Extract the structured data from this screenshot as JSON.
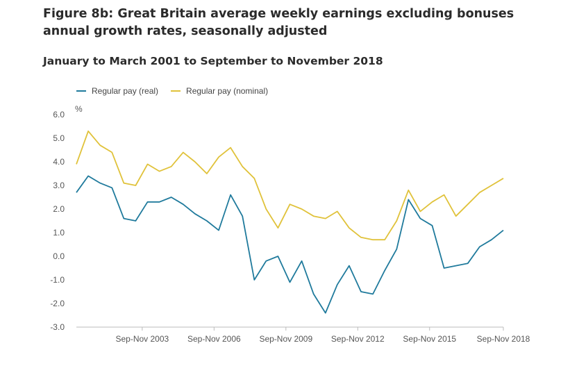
{
  "title": "Figure 8b: Great Britain average weekly earnings excluding bonuses annual growth rates, seasonally adjusted",
  "subtitle": "January to March 2001 to September to November 2018",
  "chart_data": {
    "type": "line",
    "title": "Figure 8b: Great Britain average weekly earnings excluding bonuses annual growth rates, seasonally adjusted",
    "subtitle": "January to March 2001 to September to November 2018",
    "xlabel": "",
    "ylabel": "%",
    "ylim": [
      -3.0,
      6.0
    ],
    "yticks": [
      "6.0",
      "5.0",
      "4.0",
      "3.0",
      "2.0",
      "1.0",
      "0.0",
      "-1.0",
      "-2.0",
      "-3.0"
    ],
    "xticks": [
      "Sep-Nov 2003",
      "Sep-Nov 2006",
      "Sep-Nov 2009",
      "Sep-Nov 2012",
      "Sep-Nov 2015",
      "Sep-Nov 2018"
    ],
    "grid": false,
    "legend_position": "top-left",
    "x": [
      "Jan-Mar 2001",
      "Jul-Sep 2001",
      "Jan-Mar 2002",
      "Jul-Sep 2002",
      "Jan-Mar 2003",
      "Jul-Sep 2003",
      "Jan-Mar 2004",
      "Jul-Sep 2004",
      "Jan-Mar 2005",
      "Jul-Sep 2005",
      "Jan-Mar 2006",
      "Jul-Sep 2006",
      "Jan-Mar 2007",
      "Jul-Sep 2007",
      "Jan-Mar 2008",
      "Jul-Sep 2008",
      "Jan-Mar 2009",
      "Jul-Sep 2009",
      "Jan-Mar 2010",
      "Jul-Sep 2010",
      "Jan-Mar 2011",
      "Jul-Sep 2011",
      "Jan-Mar 2012",
      "Jul-Sep 2012",
      "Jan-Mar 2013",
      "Jul-Sep 2013",
      "Jan-Mar 2014",
      "Jul-Sep 2014",
      "Jan-Mar 2015",
      "Jul-Sep 2015",
      "Jan-Mar 2016",
      "Jul-Sep 2016",
      "Jan-Mar 2017",
      "Jul-Sep 2017",
      "Jan-Mar 2018",
      "Jul-Sep 2018",
      "Sep-Nov 2018"
    ],
    "series": [
      {
        "name": "Regular pay (real)",
        "color": "#1f7a9c",
        "values": [
          2.7,
          3.4,
          3.1,
          2.9,
          1.6,
          1.5,
          2.3,
          2.3,
          2.5,
          2.2,
          1.8,
          1.5,
          1.1,
          2.6,
          1.7,
          -1.0,
          -0.2,
          0.0,
          -1.1,
          -0.2,
          -1.6,
          -2.4,
          -1.2,
          -0.4,
          -1.5,
          -1.6,
          -0.6,
          0.3,
          2.4,
          1.6,
          1.3,
          -0.5,
          -0.4,
          -0.3,
          0.4,
          0.7,
          1.1
        ]
      },
      {
        "name": "Regular pay (nominal)",
        "color": "#e0c23a",
        "values": [
          3.9,
          5.3,
          4.7,
          4.4,
          3.1,
          3.0,
          3.9,
          3.6,
          3.8,
          4.4,
          4.0,
          3.5,
          4.2,
          4.6,
          3.8,
          3.3,
          2.0,
          1.2,
          2.2,
          2.0,
          1.7,
          1.6,
          1.9,
          1.2,
          0.8,
          0.7,
          0.7,
          1.5,
          2.8,
          1.9,
          2.3,
          2.6,
          1.7,
          2.2,
          2.7,
          3.0,
          3.3
        ]
      }
    ]
  }
}
